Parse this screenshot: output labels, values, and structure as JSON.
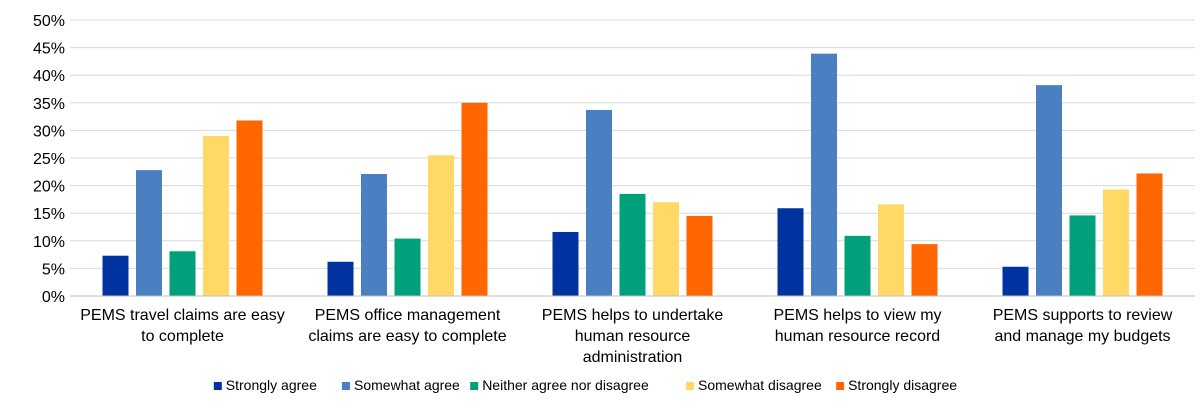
{
  "chart_data": {
    "type": "bar",
    "title": "",
    "xlabel": "",
    "ylabel": "",
    "ylim": [
      0,
      0.5
    ],
    "yticks": [
      "0%",
      "5%",
      "10%",
      "15%",
      "20%",
      "25%",
      "30%",
      "35%",
      "40%",
      "45%",
      "50%"
    ],
    "grid": true,
    "legend_position": "bottom",
    "categories": [
      [
        "PEMS travel claims are easy",
        "to complete"
      ],
      [
        "PEMS office management",
        "claims are easy to complete"
      ],
      [
        "PEMS helps to undertake",
        "human resource",
        "administration"
      ],
      [
        "PEMS helps to view my",
        "human resource record"
      ],
      [
        "PEMS supports to review",
        "and manage my budgets"
      ]
    ],
    "series": [
      {
        "name": "Strongly agree",
        "color": "#0033A0",
        "values": [
          0.073,
          0.062,
          0.116,
          0.159,
          0.053
        ]
      },
      {
        "name": "Somewhat agree",
        "color": "#4A7FC1",
        "values": [
          0.228,
          0.221,
          0.337,
          0.439,
          0.382
        ]
      },
      {
        "name": "Neither agree nor disagree",
        "color": "#00A07A",
        "values": [
          0.081,
          0.104,
          0.185,
          0.109,
          0.146
        ]
      },
      {
        "name": "Somewhat disagree",
        "color": "#FFD966",
        "values": [
          0.29,
          0.255,
          0.17,
          0.166,
          0.193
        ]
      },
      {
        "name": "Strongly disagree",
        "color": "#FF6600",
        "values": [
          0.318,
          0.35,
          0.145,
          0.094,
          0.222
        ]
      }
    ]
  }
}
